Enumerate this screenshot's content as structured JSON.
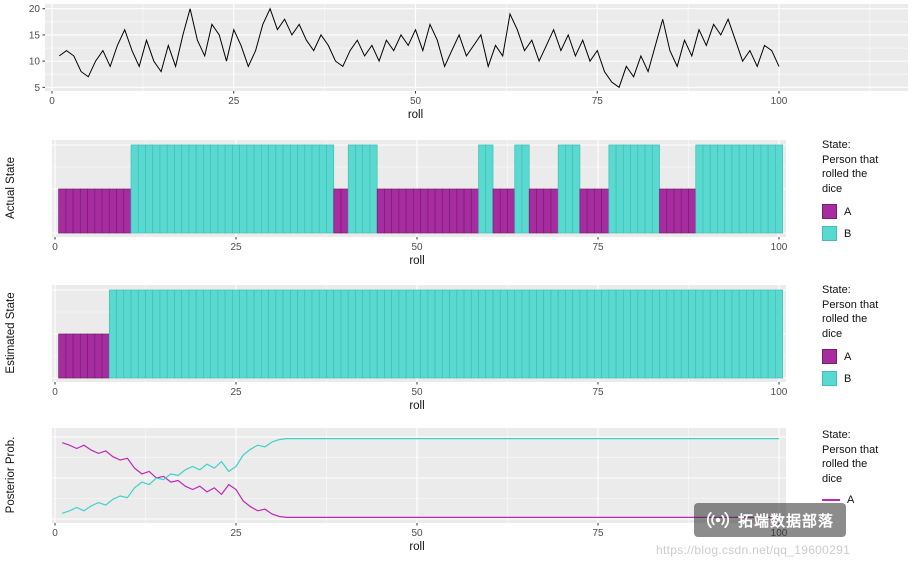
{
  "colors": {
    "panel_bg": "#EBEBEB",
    "grid": "#FFFFFF",
    "line": "#000000",
    "state_A": "#A62C9F",
    "state_A_border": "#74206F",
    "state_B": "#59D9CF",
    "state_B_border": "#3FBFB5",
    "posterior_A": "#BE29B4",
    "posterior_B": "#3ED2C8"
  },
  "chart_data": [
    {
      "id": "dice_sum",
      "type": "line",
      "xlabel": "roll",
      "ylabel": "",
      "x_ticks": [
        0,
        25,
        50,
        75,
        100
      ],
      "y_ticks": [
        5,
        10,
        15,
        20
      ],
      "ylim": [
        4,
        21
      ],
      "xlim": [
        0,
        100
      ],
      "x_start": 1,
      "values": [
        11,
        12,
        11,
        8,
        7,
        10,
        12,
        9,
        13,
        16,
        12,
        9,
        14,
        10,
        8,
        13,
        9,
        15,
        20,
        14,
        11,
        17,
        15,
        10,
        16,
        13,
        9,
        12,
        17,
        20,
        16,
        18,
        15,
        17,
        14,
        12,
        15,
        13,
        10,
        9,
        12,
        14,
        11,
        13,
        10,
        14,
        12,
        15,
        13,
        16,
        12,
        17,
        14,
        9,
        12,
        15,
        11,
        13,
        15,
        9,
        13,
        11,
        19,
        16,
        12,
        14,
        10,
        13,
        16,
        12,
        15,
        11,
        14,
        10,
        12,
        8,
        6,
        5,
        9,
        7,
        11,
        8,
        13,
        18,
        12,
        9,
        14,
        11,
        16,
        13,
        17,
        15,
        18,
        14,
        10,
        12,
        9,
        13,
        12,
        9
      ]
    },
    {
      "id": "actual_state",
      "type": "bar",
      "xlabel": "roll",
      "ylabel": "Actual State",
      "x_ticks": [
        0,
        25,
        50,
        75,
        100
      ],
      "state_heights": {
        "A": 1,
        "B": 2
      },
      "runs": [
        {
          "state": "A",
          "from": 1,
          "to": 10
        },
        {
          "state": "B",
          "from": 11,
          "to": 38
        },
        {
          "state": "A",
          "from": 39,
          "to": 40
        },
        {
          "state": "B",
          "from": 41,
          "to": 44
        },
        {
          "state": "A",
          "from": 45,
          "to": 58
        },
        {
          "state": "B",
          "from": 59,
          "to": 60
        },
        {
          "state": "A",
          "from": 61,
          "to": 63
        },
        {
          "state": "B",
          "from": 64,
          "to": 65
        },
        {
          "state": "A",
          "from": 66,
          "to": 69
        },
        {
          "state": "B",
          "from": 70,
          "to": 72
        },
        {
          "state": "A",
          "from": 73,
          "to": 76
        },
        {
          "state": "B",
          "from": 77,
          "to": 83
        },
        {
          "state": "A",
          "from": 84,
          "to": 88
        },
        {
          "state": "B",
          "from": 89,
          "to": 100
        }
      ]
    },
    {
      "id": "estimated_state",
      "type": "bar",
      "xlabel": "roll",
      "ylabel": "Estimated State",
      "x_ticks": [
        0,
        25,
        50,
        75,
        100
      ],
      "state_heights": {
        "A": 1,
        "B": 2
      },
      "runs": [
        {
          "state": "A",
          "from": 1,
          "to": 7
        },
        {
          "state": "B",
          "from": 8,
          "to": 100
        }
      ]
    },
    {
      "id": "posterior_prob",
      "type": "line",
      "xlabel": "roll",
      "ylabel": "Posterior Prob.",
      "x_ticks": [
        0,
        25,
        50,
        75,
        100
      ],
      "ylim": [
        0,
        1
      ],
      "x_start": 1,
      "series": [
        {
          "name": "A",
          "values": [
            0.93,
            0.9,
            0.86,
            0.9,
            0.84,
            0.8,
            0.83,
            0.76,
            0.72,
            0.74,
            0.62,
            0.55,
            0.58,
            0.5,
            0.52,
            0.45,
            0.47,
            0.4,
            0.36,
            0.4,
            0.33,
            0.38,
            0.3,
            0.42,
            0.36,
            0.22,
            0.15,
            0.1,
            0.12,
            0.06,
            0.03,
            0.02,
            0.02,
            0.02,
            0.02,
            0.02,
            0.02,
            0.02,
            0.02,
            0.02,
            0.02,
            0.02,
            0.02,
            0.02,
            0.02,
            0.02,
            0.02,
            0.02,
            0.02,
            0.02,
            0.02,
            0.02,
            0.02,
            0.02,
            0.02,
            0.02,
            0.02,
            0.02,
            0.02,
            0.02,
            0.02,
            0.02,
            0.02,
            0.02,
            0.02,
            0.02,
            0.02,
            0.02,
            0.02,
            0.02,
            0.02,
            0.02,
            0.02,
            0.02,
            0.02,
            0.02,
            0.02,
            0.02,
            0.02,
            0.02,
            0.02,
            0.02,
            0.02,
            0.02,
            0.02,
            0.02,
            0.02,
            0.02,
            0.02,
            0.02,
            0.02,
            0.02,
            0.02,
            0.02,
            0.02,
            0.02,
            0.02,
            0.02,
            0.02,
            0.02
          ]
        },
        {
          "name": "B",
          "values": [
            0.07,
            0.1,
            0.14,
            0.1,
            0.16,
            0.2,
            0.17,
            0.24,
            0.28,
            0.26,
            0.38,
            0.45,
            0.42,
            0.5,
            0.48,
            0.55,
            0.53,
            0.6,
            0.64,
            0.6,
            0.67,
            0.62,
            0.7,
            0.58,
            0.64,
            0.78,
            0.85,
            0.9,
            0.88,
            0.94,
            0.97,
            0.98,
            0.98,
            0.98,
            0.98,
            0.98,
            0.98,
            0.98,
            0.98,
            0.98,
            0.98,
            0.98,
            0.98,
            0.98,
            0.98,
            0.98,
            0.98,
            0.98,
            0.98,
            0.98,
            0.98,
            0.98,
            0.98,
            0.98,
            0.98,
            0.98,
            0.98,
            0.98,
            0.98,
            0.98,
            0.98,
            0.98,
            0.98,
            0.98,
            0.98,
            0.98,
            0.98,
            0.98,
            0.98,
            0.98,
            0.98,
            0.98,
            0.98,
            0.98,
            0.98,
            0.98,
            0.98,
            0.98,
            0.98,
            0.98,
            0.98,
            0.98,
            0.98,
            0.98,
            0.98,
            0.98,
            0.98,
            0.98,
            0.98,
            0.98,
            0.98,
            0.98,
            0.98,
            0.98,
            0.98,
            0.98,
            0.98,
            0.98,
            0.98,
            0.98
          ]
        }
      ]
    }
  ],
  "legend": {
    "title_lines": [
      "State:",
      "Person that",
      "rolled the",
      "dice"
    ],
    "bar_items": [
      {
        "label": "A"
      },
      {
        "label": "B"
      }
    ],
    "line_items": [
      {
        "label": "A"
      }
    ]
  },
  "watermark": {
    "text": "拓端数据部落",
    "url": "https://blog.csdn.net/qq_19600291"
  }
}
